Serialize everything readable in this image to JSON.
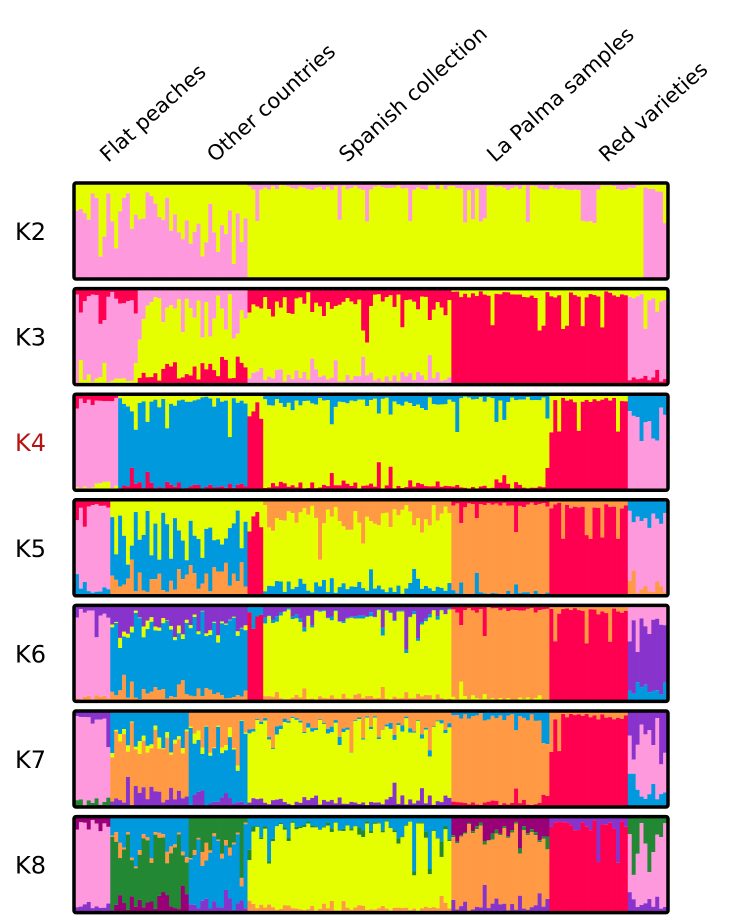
{
  "chart_data": {
    "type": "bar",
    "subtype": "stacked-admixture",
    "title": "",
    "xlabel": "",
    "ylabel": "",
    "ylim": [
      0,
      1
    ],
    "grid": false,
    "legend": "none",
    "groups": [
      {
        "label": "Flat peaches",
        "first": 0,
        "last": 15
      },
      {
        "label": "Other countries",
        "first": 16,
        "last": 43
      },
      {
        "label": "Spanish collection",
        "first": 44,
        "last": 95
      },
      {
        "label": "La Palma samples",
        "first": 96,
        "last": 122
      },
      {
        "label": "Red varieties",
        "first": 123,
        "last": 150
      }
    ],
    "palette": [
      "#ff99dd",
      "#e5ff00",
      "#ff0050",
      "#0099dd",
      "#ff9944",
      "#8833cc",
      "#228833",
      "#990077"
    ],
    "panels": [
      {
        "label": "K2",
        "k": 2,
        "highlight": false,
        "segments": [
          {
            "from": 0,
            "to": 23,
            "dominant": 0,
            "minor": [
              1
            ],
            "minor_share": 0.25
          },
          {
            "from": 24,
            "to": 43,
            "dominant": 0,
            "minor": [
              1
            ],
            "minor_share": 0.45
          },
          {
            "from": 44,
            "to": 144,
            "dominant": 1,
            "minor": [
              0
            ],
            "minor_share": 0.04
          },
          {
            "from": 145,
            "to": 150,
            "dominant": 0,
            "minor": [
              1
            ],
            "minor_share": 0.05
          }
        ]
      },
      {
        "label": "K3",
        "k": 3,
        "highlight": false,
        "segments": [
          {
            "from": 0,
            "to": 15,
            "dominant": 0,
            "minor": [
              2,
              1
            ],
            "minor_share": 0.12
          },
          {
            "from": 16,
            "to": 28,
            "dominant": 1,
            "minor": [
              0,
              2
            ],
            "minor_share": 0.35
          },
          {
            "from": 29,
            "to": 43,
            "dominant": 1,
            "minor": [
              0,
              2
            ],
            "minor_share": 0.3
          },
          {
            "from": 44,
            "to": 95,
            "dominant": 1,
            "minor": [
              2,
              0
            ],
            "minor_share": 0.22
          },
          {
            "from": 96,
            "to": 140,
            "dominant": 2,
            "minor": [
              1
            ],
            "minor_share": 0.06
          },
          {
            "from": 141,
            "to": 150,
            "dominant": 0,
            "minor": [
              1,
              2
            ],
            "minor_share": 0.1
          }
        ]
      },
      {
        "label": "K4",
        "k": 4,
        "highlight": true,
        "segments": [
          {
            "from": 0,
            "to": 10,
            "dominant": 0,
            "minor": [
              2,
              1
            ],
            "minor_share": 0.1
          },
          {
            "from": 11,
            "to": 43,
            "dominant": 3,
            "minor": [
              1,
              2
            ],
            "minor_share": 0.1
          },
          {
            "from": 44,
            "to": 47,
            "dominant": 2,
            "minor": [
              1
            ],
            "minor_share": 0.2
          },
          {
            "from": 48,
            "to": 95,
            "dominant": 1,
            "minor": [
              3,
              2
            ],
            "minor_share": 0.12
          },
          {
            "from": 96,
            "to": 120,
            "dominant": 1,
            "minor": [
              3,
              2
            ],
            "minor_share": 0.08
          },
          {
            "from": 121,
            "to": 140,
            "dominant": 2,
            "minor": [
              1
            ],
            "minor_share": 0.05
          },
          {
            "from": 141,
            "to": 150,
            "dominant": 0,
            "minor": [
              3
            ],
            "minor_share": 0.3
          }
        ]
      },
      {
        "label": "K5",
        "k": 5,
        "highlight": false,
        "segments": [
          {
            "from": 0,
            "to": 8,
            "dominant": 0,
            "minor": [
              2,
              3
            ],
            "minor_share": 0.1
          },
          {
            "from": 9,
            "to": 43,
            "dominant": 3,
            "minor": [
              1,
              4
            ],
            "minor_share": 0.45
          },
          {
            "from": 44,
            "to": 47,
            "dominant": 2,
            "minor": [
              1
            ],
            "minor_share": 0.2
          },
          {
            "from": 48,
            "to": 95,
            "dominant": 1,
            "minor": [
              4,
              3
            ],
            "minor_share": 0.25
          },
          {
            "from": 96,
            "to": 120,
            "dominant": 4,
            "minor": [
              2,
              3
            ],
            "minor_share": 0.06
          },
          {
            "from": 121,
            "to": 140,
            "dominant": 2,
            "minor": [
              4
            ],
            "minor_share": 0.05
          },
          {
            "from": 141,
            "to": 150,
            "dominant": 0,
            "minor": [
              3,
              4
            ],
            "minor_share": 0.3
          }
        ]
      },
      {
        "label": "K6",
        "k": 6,
        "highlight": false,
        "segments": [
          {
            "from": 0,
            "to": 8,
            "dominant": 0,
            "minor": [
              5,
              4
            ],
            "minor_share": 0.1
          },
          {
            "from": 9,
            "to": 43,
            "dominant": 3,
            "minor": [
              5,
              4,
              1
            ],
            "minor_share": 0.3
          },
          {
            "from": 44,
            "to": 47,
            "dominant": 2,
            "minor": [
              3
            ],
            "minor_share": 0.2
          },
          {
            "from": 48,
            "to": 95,
            "dominant": 1,
            "minor": [
              5,
              4,
              3
            ],
            "minor_share": 0.15
          },
          {
            "from": 96,
            "to": 120,
            "dominant": 4,
            "minor": [
              2,
              1
            ],
            "minor_share": 0.06
          },
          {
            "from": 121,
            "to": 140,
            "dominant": 2,
            "minor": [
              4
            ],
            "minor_share": 0.05
          },
          {
            "from": 141,
            "to": 150,
            "dominant": 5,
            "minor": [
              0,
              3
            ],
            "minor_share": 0.4
          }
        ]
      },
      {
        "label": "K7",
        "k": 7,
        "highlight": false,
        "segments": [
          {
            "from": 0,
            "to": 8,
            "dominant": 0,
            "minor": [
              5,
              6
            ],
            "minor_share": 0.1
          },
          {
            "from": 9,
            "to": 28,
            "dominant": 4,
            "minor": [
              3,
              5,
              1
            ],
            "minor_share": 0.35
          },
          {
            "from": 29,
            "to": 43,
            "dominant": 3,
            "minor": [
              4,
              5,
              1
            ],
            "minor_share": 0.35
          },
          {
            "from": 44,
            "to": 95,
            "dominant": 1,
            "minor": [
              4,
              5,
              3
            ],
            "minor_share": 0.2
          },
          {
            "from": 96,
            "to": 120,
            "dominant": 4,
            "minor": [
              3,
              2
            ],
            "minor_share": 0.08
          },
          {
            "from": 121,
            "to": 140,
            "dominant": 2,
            "minor": [
              4
            ],
            "minor_share": 0.05
          },
          {
            "from": 141,
            "to": 150,
            "dominant": 0,
            "minor": [
              5,
              3
            ],
            "minor_share": 0.4
          }
        ]
      },
      {
        "label": "K8",
        "k": 8,
        "highlight": false,
        "segments": [
          {
            "from": 0,
            "to": 8,
            "dominant": 0,
            "minor": [
              7,
              5
            ],
            "minor_share": 0.15
          },
          {
            "from": 9,
            "to": 28,
            "dominant": 6,
            "minor": [
              3,
              7,
              4
            ],
            "minor_share": 0.4
          },
          {
            "from": 29,
            "to": 43,
            "dominant": 3,
            "minor": [
              6,
              5,
              4
            ],
            "minor_share": 0.35
          },
          {
            "from": 44,
            "to": 95,
            "dominant": 1,
            "minor": [
              3,
              4,
              6
            ],
            "minor_share": 0.2
          },
          {
            "from": 96,
            "to": 120,
            "dominant": 4,
            "minor": [
              7,
              5,
              6
            ],
            "minor_share": 0.2
          },
          {
            "from": 121,
            "to": 140,
            "dominant": 2,
            "minor": [
              5
            ],
            "minor_share": 0.08
          },
          {
            "from": 141,
            "to": 150,
            "dominant": 0,
            "minor": [
              6,
              5
            ],
            "minor_share": 0.35
          }
        ]
      }
    ],
    "sample_count": 151,
    "highlight_color": "#b31515",
    "label_color": "#000000",
    "frame_color": "#000000"
  }
}
